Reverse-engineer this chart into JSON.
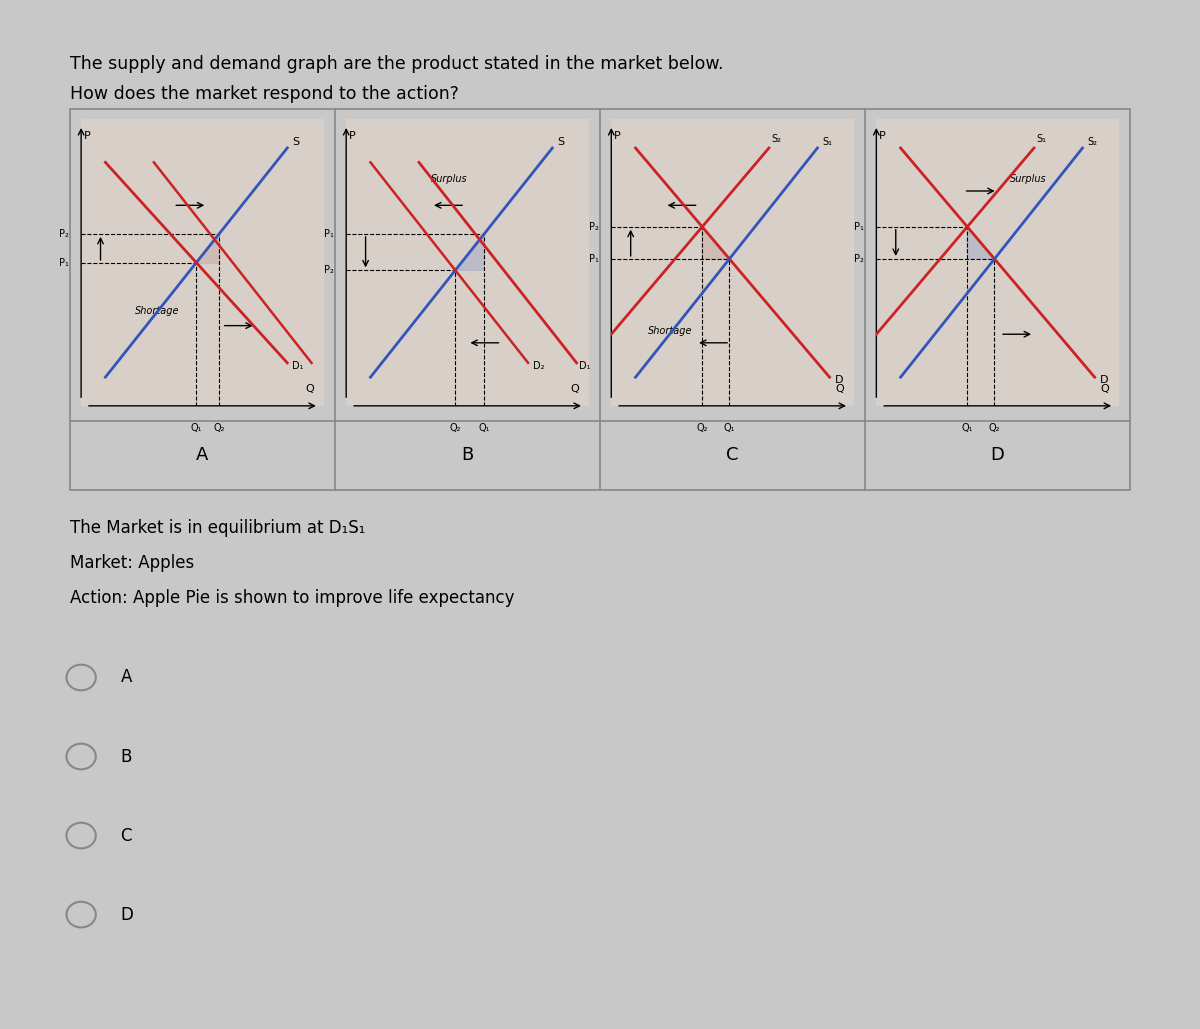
{
  "title1": "The supply and demand graph are the product stated in the market below.",
  "title2": "How does the market respond to the action?",
  "page_bg": "#c8c8c8",
  "card_bg": "#ffffff",
  "panel_bg": "#d8d0c8",
  "info_line1": "The Market is in equilibrium at D₁S₁",
  "info_line2": "Market: Apples",
  "info_line3": "Action: Apple Pie is shown to improve life expectancy",
  "choices": [
    "A",
    "B",
    "C",
    "D"
  ],
  "panel_labels": [
    "A",
    "B",
    "C",
    "D"
  ],
  "blue_color": "#3355bb",
  "red_color": "#cc2222",
  "shade_red": "#c8b0a8",
  "shade_blue": "#a8b0c8",
  "line_color": "#888888"
}
